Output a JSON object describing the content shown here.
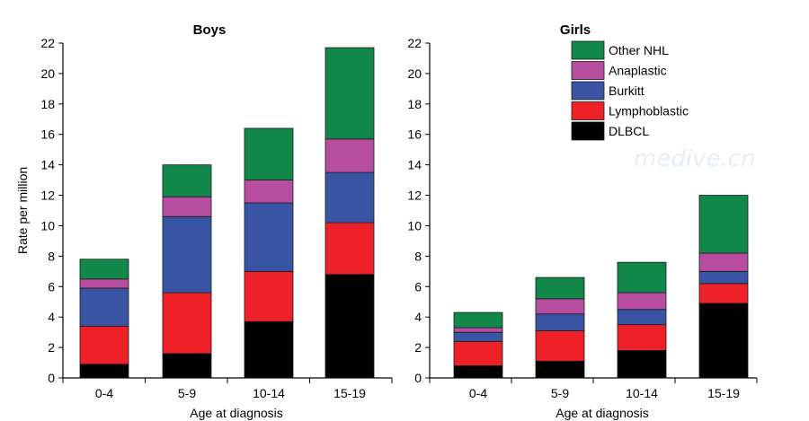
{
  "watermark": {
    "text": "medive.cn"
  },
  "chart_data": [
    {
      "type": "bar",
      "stacked": true,
      "title": "Boys",
      "ylabel": "Rate per million",
      "xlabel": "Age at diagnosis",
      "ylim": [
        0,
        22
      ],
      "yticks": [
        0,
        2,
        4,
        6,
        8,
        10,
        12,
        14,
        16,
        18,
        20,
        22
      ],
      "categories": [
        "0-4",
        "5-9",
        "10-14",
        "15-19"
      ],
      "series": [
        {
          "name": "DLBCL",
          "color": "#000000",
          "values": [
            0.9,
            1.6,
            3.7,
            6.8
          ]
        },
        {
          "name": "Lymphoblastic",
          "color": "#ee2128",
          "values": [
            2.5,
            4.0,
            3.3,
            3.4
          ]
        },
        {
          "name": "Burkitt",
          "color": "#3a54a4",
          "values": [
            2.5,
            5.0,
            4.5,
            3.3
          ]
        },
        {
          "name": "Anaplastic",
          "color": "#b64d9f",
          "values": [
            0.6,
            1.3,
            1.5,
            2.2
          ]
        },
        {
          "name": "Other NHL",
          "color": "#11874a",
          "values": [
            1.3,
            2.1,
            3.4,
            6.0
          ]
        }
      ]
    },
    {
      "type": "bar",
      "stacked": true,
      "title": "Girls",
      "ylabel": "",
      "xlabel": "Age at diagnosis",
      "ylim": [
        0,
        22
      ],
      "yticks": [
        0,
        2,
        4,
        6,
        8,
        10,
        12,
        14,
        16,
        18,
        20,
        22
      ],
      "categories": [
        "0-4",
        "5-9",
        "10-14",
        "15-19"
      ],
      "legend": {
        "placement": "top-right",
        "order": [
          "Other NHL",
          "Anaplastic",
          "Burkitt",
          "Lymphoblastic",
          "DLBCL"
        ]
      },
      "series": [
        {
          "name": "DLBCL",
          "color": "#000000",
          "values": [
            0.8,
            1.1,
            1.8,
            4.9
          ]
        },
        {
          "name": "Lymphoblastic",
          "color": "#ee2128",
          "values": [
            1.6,
            2.0,
            1.7,
            1.3
          ]
        },
        {
          "name": "Burkitt",
          "color": "#3a54a4",
          "values": [
            0.6,
            1.1,
            1.0,
            0.8
          ]
        },
        {
          "name": "Anaplastic",
          "color": "#b64d9f",
          "values": [
            0.3,
            1.0,
            1.1,
            1.2
          ]
        },
        {
          "name": "Other NHL",
          "color": "#11874a",
          "values": [
            1.0,
            1.4,
            2.0,
            3.8
          ]
        }
      ]
    }
  ]
}
